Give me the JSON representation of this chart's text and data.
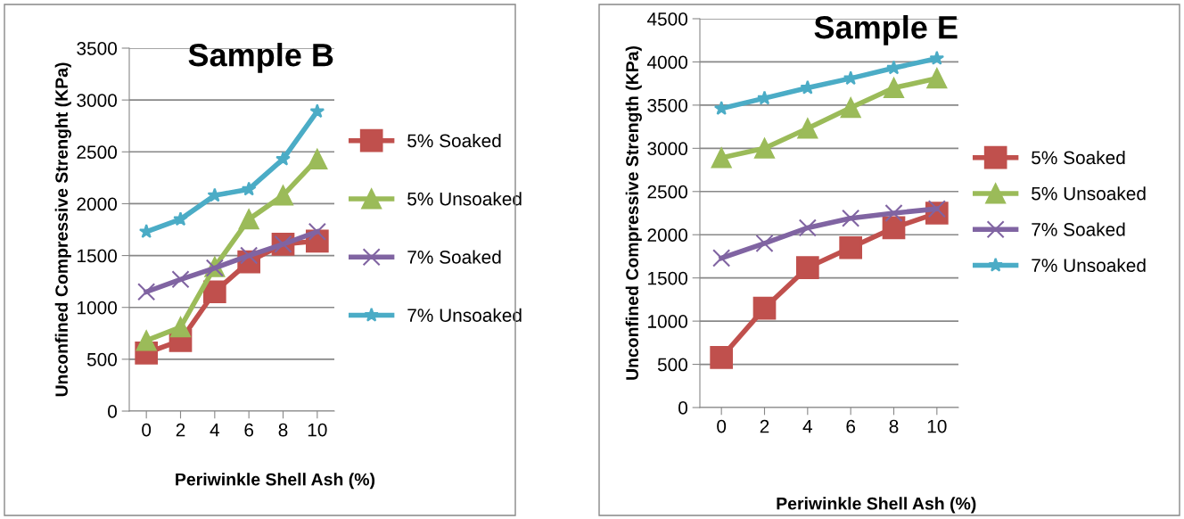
{
  "chart_data": [
    {
      "type": "line",
      "title": "Sample B",
      "xlabel": "Periwinkle Shell Ash (%)",
      "ylabel": "Unconfined Compressive Strenght (KPa)",
      "categories": [
        "0",
        "2",
        "4",
        "6",
        "8",
        "10"
      ],
      "ylim": [
        0,
        3500
      ],
      "yticks": [
        0,
        500,
        1000,
        1500,
        2000,
        2500,
        3000,
        3500
      ],
      "grid": "y",
      "legend": "right",
      "series": [
        {
          "name": "5% Soaked",
          "color": "#c0504d",
          "marker": "square",
          "values": [
            560,
            680,
            1150,
            1440,
            1610,
            1640
          ]
        },
        {
          "name": "5% Unsoaked",
          "color": "#9bbb59",
          "marker": "triangle",
          "values": [
            680,
            810,
            1390,
            1850,
            2080,
            2430
          ]
        },
        {
          "name": "7% Soaked",
          "color": "#8064a2",
          "marker": "cross",
          "values": [
            1150,
            1270,
            1380,
            1500,
            1610,
            1730
          ]
        },
        {
          "name": "7% Unsoaked",
          "color": "#4bacc6",
          "marker": "star",
          "values": [
            1730,
            1850,
            2080,
            2140,
            2430,
            2890
          ]
        }
      ]
    },
    {
      "type": "line",
      "title": "Sample E",
      "xlabel": "Periwinkle Shell Ash (%)",
      "ylabel": "Unconfined Compressive Strength (KPa)",
      "categories": [
        "0",
        "2",
        "4",
        "6",
        "8",
        "10"
      ],
      "ylim": [
        0,
        4500
      ],
      "yticks": [
        0,
        500,
        1000,
        1500,
        2000,
        2500,
        3000,
        3500,
        4000,
        4500
      ],
      "grid": "y",
      "legend": "right",
      "series": [
        {
          "name": "5% Soaked",
          "color": "#c0504d",
          "marker": "square",
          "values": [
            580,
            1150,
            1620,
            1850,
            2080,
            2250
          ]
        },
        {
          "name": "5% Unsoaked",
          "color": "#9bbb59",
          "marker": "triangle",
          "values": [
            2890,
            3000,
            3230,
            3470,
            3700,
            3810
          ]
        },
        {
          "name": "7% Soaked",
          "color": "#8064a2",
          "marker": "cross",
          "values": [
            1730,
            1900,
            2080,
            2190,
            2250,
            2300
          ]
        },
        {
          "name": "7% Unsoaked",
          "color": "#4bacc6",
          "marker": "star",
          "values": [
            3460,
            3580,
            3700,
            3810,
            3930,
            4040
          ]
        }
      ]
    }
  ]
}
